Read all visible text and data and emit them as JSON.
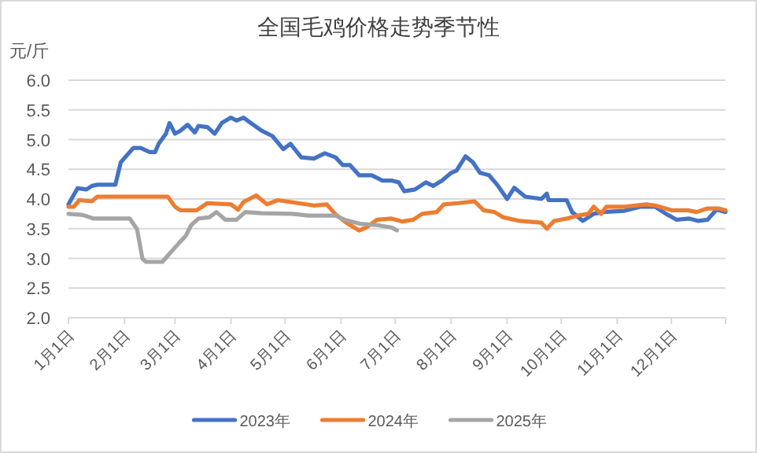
{
  "chart_data": {
    "type": "line",
    "title": "全国毛鸡价格走势季节性",
    "ylabel": "元/斤",
    "xlim": [
      "--01-01",
      "--12-31"
    ],
    "xticks": [
      {
        "value": "--01-01",
        "label": "1月1日"
      },
      {
        "value": "--02-01",
        "label": "2月1日"
      },
      {
        "value": "--03-01",
        "label": "3月1日"
      },
      {
        "value": "--04-01",
        "label": "4月1日"
      },
      {
        "value": "--05-01",
        "label": "5月1日"
      },
      {
        "value": "--06-01",
        "label": "6月1日"
      },
      {
        "value": "--07-01",
        "label": "7月1日"
      },
      {
        "value": "--08-01",
        "label": "8月1日"
      },
      {
        "value": "--09-01",
        "label": "9月1日"
      },
      {
        "value": "--10-01",
        "label": "10月1日"
      },
      {
        "value": "--11-01",
        "label": "11月1日"
      },
      {
        "value": "--12-01",
        "label": "12月1日"
      },
      {
        "value": "--12-31",
        "label": null
      }
    ],
    "ylim": [
      2,
      6
    ],
    "yticks": [
      {
        "value": 2,
        "label": "2.0"
      },
      {
        "value": 2.5,
        "label": "2.5"
      },
      {
        "value": 3,
        "label": "3.0"
      },
      {
        "value": 3.5,
        "label": "3.5"
      },
      {
        "value": 4,
        "label": "4.0"
      },
      {
        "value": 4.5,
        "label": "4.5"
      },
      {
        "value": 5,
        "label": "5.0"
      },
      {
        "value": 5.5,
        "label": "5.5"
      },
      {
        "value": 6,
        "label": "6.0"
      }
    ],
    "grid": "y",
    "legend": "bottom",
    "series": [
      {
        "name": "2023年",
        "color": "#4472c4",
        "x": [
          "--01-01",
          "--01-06",
          "--01-11",
          "--01-14",
          "--01-17",
          "--01-27",
          "--01-30",
          "--02-06",
          "--02-10",
          "--02-15",
          "--02-18",
          "--02-20",
          "--02-24",
          "--02-26",
          "--03-01",
          "--03-04",
          "--03-08",
          "--03-12",
          "--03-14",
          "--03-19",
          "--03-23",
          "--03-27",
          "--04-01",
          "--04-04",
          "--04-08",
          "--04-12",
          "--04-18",
          "--04-24",
          "--04-30",
          "--05-04",
          "--05-10",
          "--05-17",
          "--05-23",
          "--05-29",
          "--06-02",
          "--06-06",
          "--06-11",
          "--06-18",
          "--06-24",
          "--06-29",
          "--07-03",
          "--07-06",
          "--07-12",
          "--07-18",
          "--07-22",
          "--07-27",
          "--08-01",
          "--08-04",
          "--08-09",
          "--08-13",
          "--08-17",
          "--08-22",
          "--08-27",
          "--09-01",
          "--09-05",
          "--09-11",
          "--09-20",
          "--09-23",
          "--09-24",
          "--10-04",
          "--10-07",
          "--10-13",
          "--10-19",
          "--10-24",
          "--11-05",
          "--11-14",
          "--11-22",
          "--11-28",
          "--12-04",
          "--12-11",
          "--12-16",
          "--12-21",
          "--12-26",
          "--12-31"
        ],
        "values": [
          3.91,
          4.18,
          4.16,
          4.22,
          4.24,
          4.24,
          4.62,
          4.86,
          4.86,
          4.79,
          4.79,
          4.93,
          5.1,
          5.28,
          5.1,
          5.15,
          5.25,
          5.12,
          5.23,
          5.21,
          5.1,
          5.28,
          5.37,
          5.32,
          5.37,
          5.28,
          5.15,
          5.06,
          4.84,
          4.93,
          4.7,
          4.68,
          4.77,
          4.7,
          4.57,
          4.57,
          4.4,
          4.4,
          4.31,
          4.31,
          4.28,
          4.13,
          4.16,
          4.28,
          4.22,
          4.31,
          4.44,
          4.48,
          4.72,
          4.62,
          4.44,
          4.4,
          4.22,
          4.0,
          4.19,
          4.04,
          4.0,
          4.09,
          3.98,
          3.98,
          3.78,
          3.63,
          3.75,
          3.78,
          3.8,
          3.87,
          3.87,
          3.75,
          3.65,
          3.67,
          3.63,
          3.65,
          3.82,
          3.78
        ]
      },
      {
        "name": "2024年",
        "color": "#ed7d31",
        "x": [
          "--01-01",
          "--01-04",
          "--01-07",
          "--01-14",
          "--01-17",
          "--02-25",
          "--03-01",
          "--03-04",
          "--03-13",
          "--03-19",
          "--04-01",
          "--04-05",
          "--04-08",
          "--04-15",
          "--04-21",
          "--04-27",
          "--05-08",
          "--05-17",
          "--05-24",
          "--05-29",
          "--06-04",
          "--06-11",
          "--06-15",
          "--06-21",
          "--06-29",
          "--07-05",
          "--07-11",
          "--07-16",
          "--07-24",
          "--07-28",
          "--08-05",
          "--08-14",
          "--08-19",
          "--08-25",
          "--08-30",
          "--09-08",
          "--09-20",
          "--09-23",
          "--09-27",
          "--10-04",
          "--10-10",
          "--10-16",
          "--10-19",
          "--10-23",
          "--10-26",
          "--11-05",
          "--11-17",
          "--11-22",
          "--12-01",
          "--12-10",
          "--12-15",
          "--12-21",
          "--12-27",
          "--12-31"
        ],
        "values": [
          3.87,
          3.87,
          3.98,
          3.96,
          4.04,
          4.04,
          3.87,
          3.81,
          3.81,
          3.93,
          3.91,
          3.82,
          3.95,
          4.06,
          3.91,
          3.98,
          3.93,
          3.89,
          3.91,
          3.74,
          3.6,
          3.47,
          3.52,
          3.65,
          3.67,
          3.62,
          3.65,
          3.75,
          3.78,
          3.91,
          3.93,
          3.96,
          3.81,
          3.78,
          3.69,
          3.63,
          3.6,
          3.5,
          3.63,
          3.67,
          3.72,
          3.75,
          3.87,
          3.75,
          3.87,
          3.87,
          3.91,
          3.89,
          3.81,
          3.81,
          3.78,
          3.84,
          3.84,
          3.81
        ]
      },
      {
        "name": "2025年",
        "color": "#a5a5a5",
        "x": [
          "--01-01",
          "--01-09",
          "--01-15",
          "--02-04",
          "--02-08",
          "--02-11",
          "--02-13",
          "--02-22",
          "--02-26",
          "--03-03",
          "--03-07",
          "--03-10",
          "--03-14",
          "--03-20",
          "--03-24",
          "--03-29",
          "--04-04",
          "--04-09",
          "--04-18",
          "--05-05",
          "--05-14",
          "--05-29",
          "--06-03",
          "--06-12",
          "--06-21",
          "--06-29",
          "--07-02"
        ],
        "values": [
          3.75,
          3.73,
          3.67,
          3.67,
          3.49,
          2.99,
          2.94,
          2.94,
          3.08,
          3.25,
          3.38,
          3.56,
          3.67,
          3.69,
          3.78,
          3.65,
          3.65,
          3.78,
          3.76,
          3.75,
          3.72,
          3.72,
          3.65,
          3.58,
          3.56,
          3.52,
          3.47
        ]
      }
    ]
  }
}
